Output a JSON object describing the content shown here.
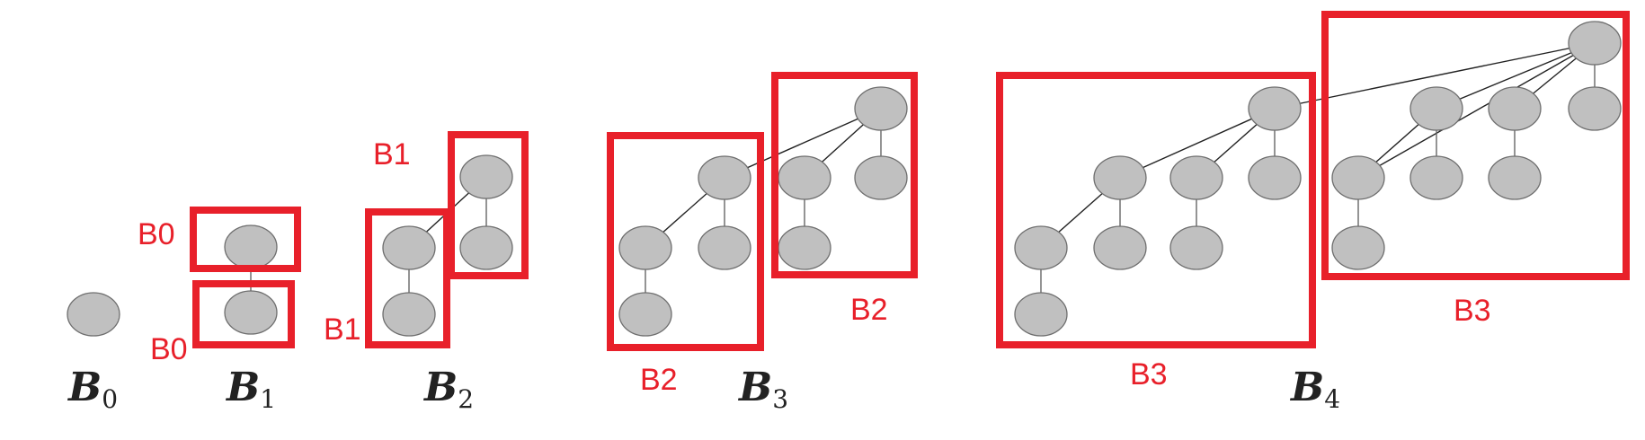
{
  "tree_labels": [
    {
      "base": "B",
      "sub": "0"
    },
    {
      "base": "B",
      "sub": "1"
    },
    {
      "base": "B",
      "sub": "2"
    },
    {
      "base": "B",
      "sub": "3"
    },
    {
      "base": "B",
      "sub": "4"
    }
  ],
  "box_labels": {
    "b1_top": "B0",
    "b1_bottom": "B0",
    "b2_top": "B1",
    "b2_bottom": "B1",
    "b3_left": "B2",
    "b3_right": "B2",
    "b4_left": "B3",
    "b4_right": "B3"
  },
  "colors": {
    "node_fill": "#c0c0c0",
    "node_stroke": "#6e6e6e",
    "highlight": "#e8202a"
  }
}
